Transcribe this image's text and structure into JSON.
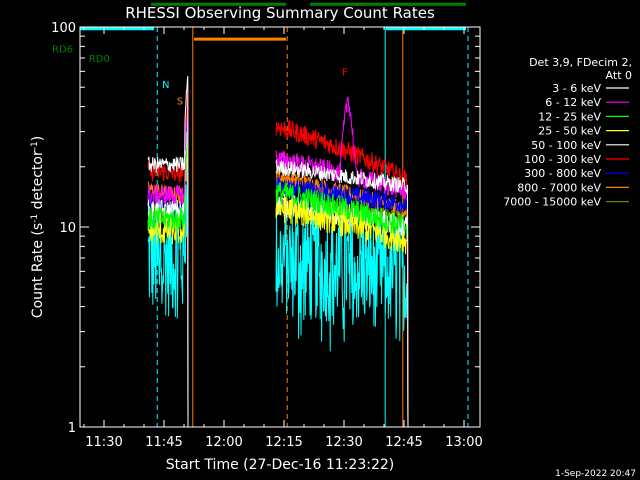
{
  "chart_data": {
    "type": "line",
    "title": "RHESSI Observing Summary Count Rates",
    "xlabel": "Start Time (27-Dec-16 11:23:22)",
    "ylabel_main": "Count Rate (s",
    "ylabel_sup1": "-1",
    "ylabel_mid": " detector",
    "ylabel_sup2": "-1",
    "ylabel_end": ")",
    "yscale": "log",
    "ylim": [
      1,
      100
    ],
    "xlim_minutes": [
      684,
      784
    ],
    "x_ticks": [
      {
        "v": 690,
        "label": "11:30"
      },
      {
        "v": 705,
        "label": "11:45"
      },
      {
        "v": 720,
        "label": "12:00"
      },
      {
        "v": 735,
        "label": "12:15"
      },
      {
        "v": 750,
        "label": "12:30"
      },
      {
        "v": 765,
        "label": "12:45"
      },
      {
        "v": 780,
        "label": "13:00"
      }
    ],
    "y_ticks": [
      {
        "v": 1,
        "label": "1"
      },
      {
        "v": 10,
        "label": "10"
      },
      {
        "v": 100,
        "label": "100"
      }
    ],
    "legend_header": [
      "Det 3,9, FDecim 2,",
      "Att 0"
    ],
    "series": [
      {
        "name": "3 - 6 keV",
        "color": "#ffffff",
        "seg1": [
          20.5,
          20.5
        ],
        "seg2": [
          20,
          16
        ],
        "noise": 0.04,
        "peak": 0
      },
      {
        "name": "6 - 12 keV",
        "color": "#ff00ff",
        "seg1": [
          14.5,
          14.5
        ],
        "seg2": [
          22,
          15
        ],
        "noise": 0.05,
        "peak": 45
      },
      {
        "name": "12 - 25 keV",
        "color": "#00ff00",
        "seg1": [
          11,
          11
        ],
        "seg2": [
          15,
          10
        ],
        "noise": 0.06,
        "peak": 0
      },
      {
        "name": "25 - 50 keV",
        "color": "#ffff00",
        "seg1": [
          9.5,
          9.5
        ],
        "seg2": [
          12.5,
          8.5
        ],
        "noise": 0.07,
        "peak": 0
      },
      {
        "name": "50 - 100 keV",
        "color": "#ffffff",
        "seg1": [
          12,
          12
        ],
        "seg2": [
          13,
          10
        ],
        "noise": 0.06,
        "peak": 0
      },
      {
        "name": "100 - 300 keV",
        "color": "#ff0000",
        "seg1": [
          19,
          18.5
        ],
        "seg2": [
          32,
          17
        ],
        "noise": 0.05,
        "peak": 0
      },
      {
        "name": "300 - 800 keV",
        "color": "#0000ff",
        "seg1": [
          13,
          12
        ],
        "seg2": [
          16,
          13
        ],
        "noise": 0.05,
        "peak": 0
      },
      {
        "name": "800 - 7000 keV",
        "color": "#ff8000",
        "seg1": [
          15.5,
          14
        ],
        "seg2": [
          18,
          12
        ],
        "noise": 0.04,
        "peak": 0
      },
      {
        "name": "7000 - 15000 keV",
        "color": "#808000",
        "seg1": [
          12,
          12
        ],
        "seg2": [
          13,
          11
        ],
        "noise": 0.05,
        "peak": 0
      }
    ],
    "cyan_noise": {
      "color": "#00ffff",
      "seg1": [
        7,
        7
      ],
      "seg2": [
        7,
        6
      ],
      "noise": 0.12
    },
    "segments": [
      [
        701,
        711
      ],
      [
        733,
        766
      ]
    ],
    "vlines": [
      {
        "v": 703.3,
        "color": "#00ffff",
        "dash": true
      },
      {
        "v": 712.2,
        "color": "#ff8000",
        "dash": false
      },
      {
        "v": 735.8,
        "color": "#ff8000",
        "dash": true
      },
      {
        "v": 760.3,
        "color": "#00ffff",
        "dash": false
      },
      {
        "v": 764.7,
        "color": "#ff8000",
        "dash": false
      },
      {
        "v": 781.0,
        "color": "#00ffff",
        "dash": true
      }
    ],
    "flag_bars": [
      {
        "x0": 684,
        "x1": 702.5,
        "y": 98,
        "color": "#00ffff"
      },
      {
        "x0": 712.5,
        "x1": 735.5,
        "y": 87,
        "color": "#ff8000"
      },
      {
        "x0": 760.5,
        "x1": 780.5,
        "y": 98,
        "color": "#00ffff"
      },
      {
        "x0": 752,
        "x1": 755,
        "y": 130,
        "color": "#ff0000"
      },
      {
        "x0": 684,
        "x1": 701.7,
        "y": 141,
        "color": "#008000"
      },
      {
        "x0": 701.7,
        "x1": 735.5,
        "y": 130,
        "color": "#008000"
      },
      {
        "x0": 737,
        "x1": 740.5,
        "y": 141,
        "color": "#008000"
      },
      {
        "x0": 741.5,
        "x1": 780.5,
        "y": 130,
        "color": "#008000"
      }
    ],
    "flag_labels": [
      {
        "text": "N",
        "x": 704.5,
        "y": 52,
        "color": "#00ffff"
      },
      {
        "text": "S",
        "x": 708.2,
        "y": 43,
        "color": "#ff8000"
      },
      {
        "text": "F",
        "x": 749.5,
        "y": 60,
        "color": "#ff0000"
      },
      {
        "text": "RD0",
        "x": 686.2,
        "y": 70,
        "color": "#008000"
      },
      {
        "text": "RD6",
        "x": 677.0,
        "y": 78,
        "color": "#008000"
      }
    ],
    "footer": "1-Sep-2022 20:47"
  }
}
